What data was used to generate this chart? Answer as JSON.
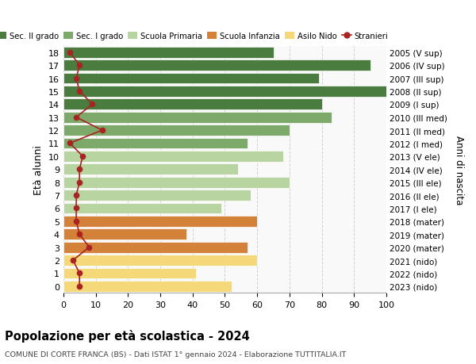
{
  "ages": [
    0,
    1,
    2,
    3,
    4,
    5,
    6,
    7,
    8,
    9,
    10,
    11,
    12,
    13,
    14,
    15,
    16,
    17,
    18
  ],
  "years": [
    "2023 (nido)",
    "2022 (nido)",
    "2021 (nido)",
    "2020 (mater)",
    "2019 (mater)",
    "2018 (mater)",
    "2017 (I ele)",
    "2016 (II ele)",
    "2015 (III ele)",
    "2014 (IV ele)",
    "2013 (V ele)",
    "2012 (I med)",
    "2011 (II med)",
    "2010 (III med)",
    "2009 (I sup)",
    "2008 (II sup)",
    "2007 (III sup)",
    "2006 (IV sup)",
    "2005 (V sup)"
  ],
  "bar_values": [
    52,
    41,
    60,
    57,
    38,
    60,
    49,
    58,
    70,
    54,
    68,
    57,
    70,
    83,
    80,
    100,
    79,
    95,
    65
  ],
  "bar_colors": [
    "#f5d87a",
    "#f5d87a",
    "#f5d87a",
    "#d4823a",
    "#d4823a",
    "#d4823a",
    "#b8d4a0",
    "#b8d4a0",
    "#b8d4a0",
    "#b8d4a0",
    "#b8d4a0",
    "#7daa6a",
    "#7daa6a",
    "#7daa6a",
    "#4a7c3f",
    "#4a7c3f",
    "#4a7c3f",
    "#4a7c3f",
    "#4a7c3f"
  ],
  "stranieri_values": [
    5,
    5,
    3,
    8,
    5,
    4,
    4,
    4,
    5,
    5,
    6,
    2,
    12,
    4,
    9,
    5,
    4,
    5,
    2
  ],
  "stranieri_color": "#aa2222",
  "legend_labels": [
    "Sec. II grado",
    "Sec. I grado",
    "Scuola Primaria",
    "Scuola Infanzia",
    "Asilo Nido",
    "Stranieri"
  ],
  "legend_colors": [
    "#4a7c3f",
    "#7daa6a",
    "#b8d4a0",
    "#d4823a",
    "#f5d87a",
    "#aa2222"
  ],
  "title": "Popolazione per età scolastica - 2024",
  "subtitle": "COMUNE DI CORTE FRANCA (BS) - Dati ISTAT 1° gennaio 2024 - Elaborazione TUTTITALIA.IT",
  "ylabel_left": "Età alunni",
  "ylabel_right": "Anni di nascita",
  "xlim": [
    0,
    100
  ],
  "xticks": [
    0,
    10,
    20,
    30,
    40,
    50,
    60,
    70,
    80,
    90,
    100
  ],
  "bg_color": "#ffffff",
  "plot_bg": "#f9f9f9",
  "grid_color": "#cccccc"
}
